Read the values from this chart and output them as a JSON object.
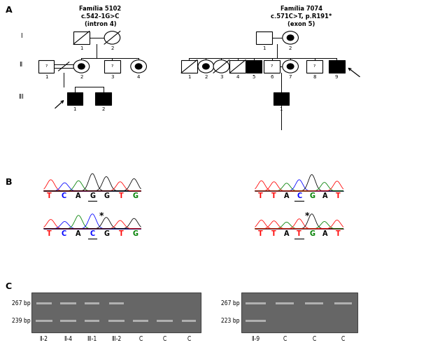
{
  "fig_width": 6.29,
  "fig_height": 5.13,
  "bg_color": "#ffffff",
  "family1_title": "Família 5102\nc.542-1G>C\n(intron 4)",
  "family2_title": "Família 7074\nc.571C>T, p.R191*\n(exon 5)",
  "seq1_top_letters": [
    "T",
    "C",
    "A",
    "G",
    "G",
    "T",
    "G"
  ],
  "seq1_top_colors": [
    "red",
    "blue",
    "black",
    "black",
    "black",
    "red",
    "green"
  ],
  "seq1_top_underline": [
    false,
    false,
    false,
    true,
    false,
    false,
    false
  ],
  "seq1_bot_letters": [
    "T",
    "C",
    "A",
    "C",
    "G",
    "T",
    "G"
  ],
  "seq1_bot_colors": [
    "red",
    "blue",
    "black",
    "blue",
    "black",
    "red",
    "green"
  ],
  "seq1_bot_underline": [
    false,
    false,
    false,
    true,
    false,
    false,
    false
  ],
  "seq2_top_letters": [
    "T",
    "T",
    "A",
    "C",
    "G",
    "A",
    "T"
  ],
  "seq2_top_colors": [
    "red",
    "red",
    "black",
    "blue",
    "green",
    "black",
    "red"
  ],
  "seq2_top_underline": [
    false,
    false,
    false,
    true,
    false,
    false,
    false
  ],
  "seq2_bot_letters": [
    "T",
    "T",
    "A",
    "T",
    "G",
    "A",
    "T"
  ],
  "seq2_bot_colors": [
    "red",
    "red",
    "black",
    "red",
    "green",
    "black",
    "red"
  ],
  "seq2_bot_underline": [
    false,
    false,
    false,
    true,
    false,
    false,
    false
  ],
  "gel1_labels": [
    "II-2",
    "II-4",
    "III-1",
    "III-2",
    "C",
    "C",
    "C"
  ],
  "gel1_bp_labels": [
    "267 bp",
    "239 bp"
  ],
  "gel2_labels": [
    "II-9",
    "C",
    "C",
    "C"
  ],
  "gel2_bp_labels": [
    "267 bp",
    "223 bp"
  ],
  "gel_bg": "#666666",
  "gel_band_color": "#cccccc"
}
